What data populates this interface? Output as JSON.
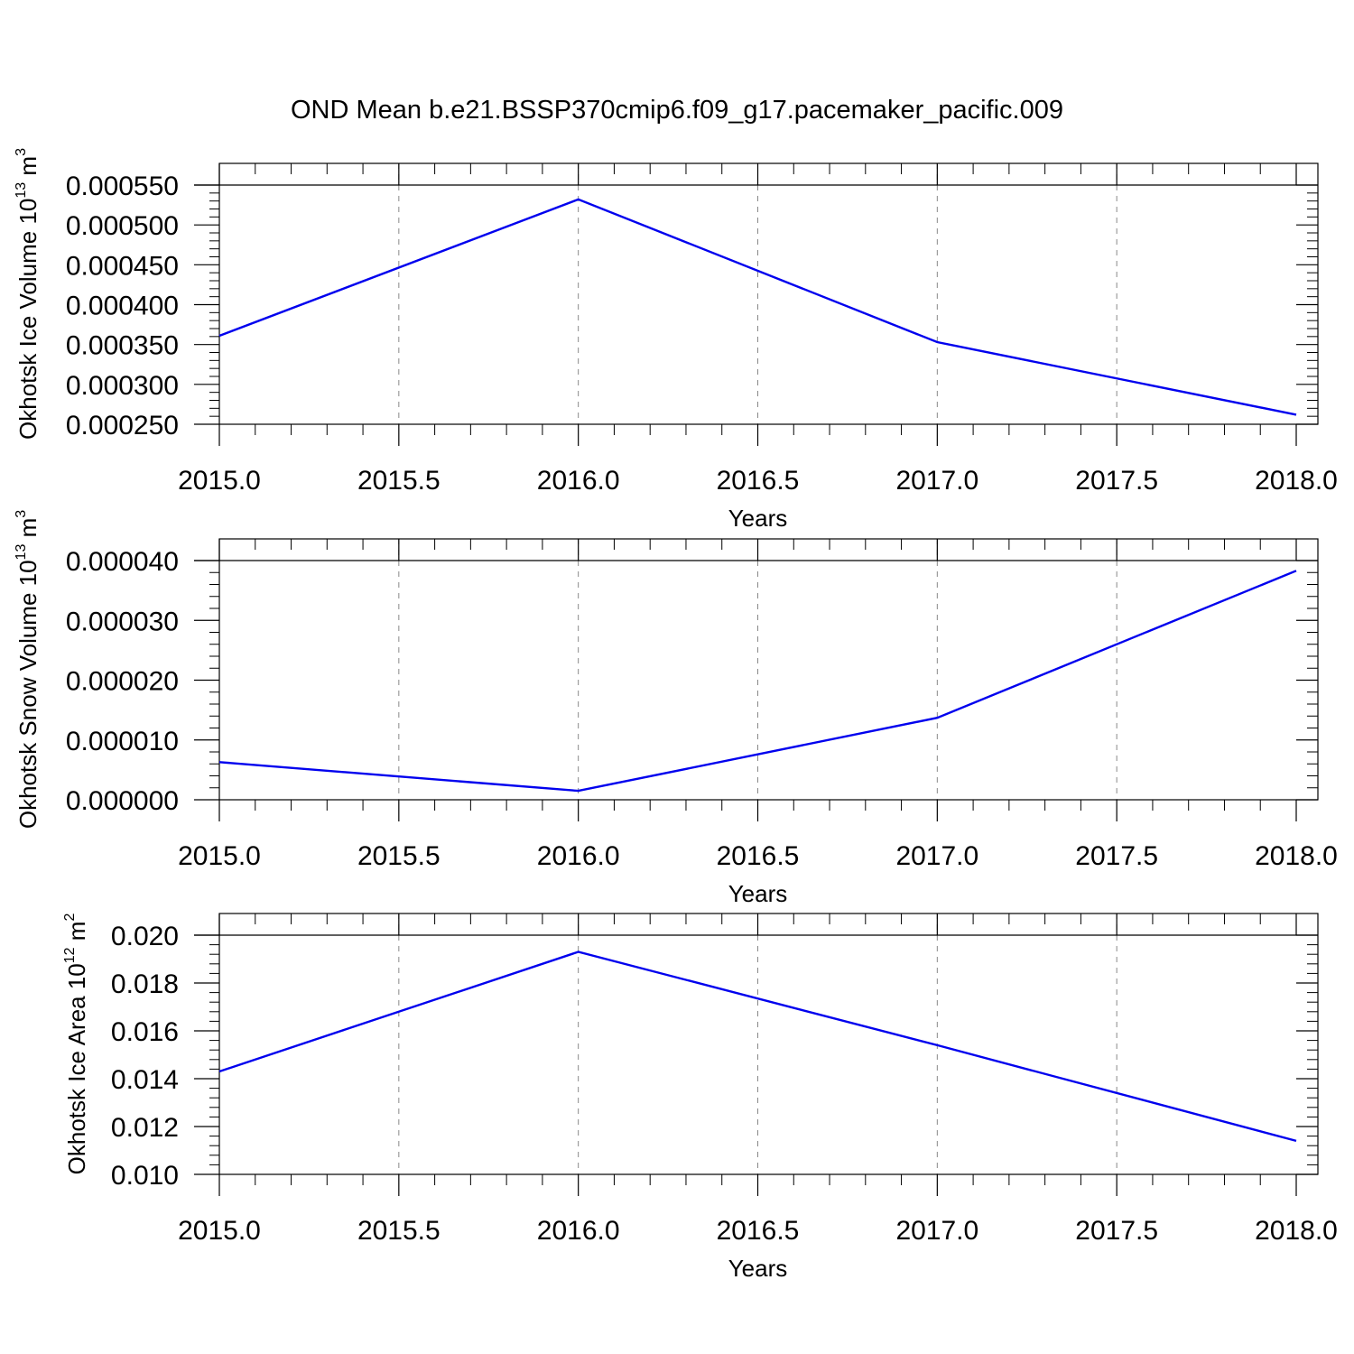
{
  "title": "OND Mean b.e21.BSSP370cmip6.f09_g17.pacemaker_pacific.009",
  "colors": {
    "series": "#0000ee",
    "grid": "#888888",
    "axis": "#000000"
  },
  "chart_data": [
    {
      "type": "line",
      "title": "",
      "xlabel": "Years",
      "ylabel": {
        "text": "Okhotsk Ice Volume 10",
        "sup": "13",
        "unit": " m",
        "unit_sup": "3"
      },
      "xlim": [
        2015.0,
        2018.0
      ],
      "ylim": [
        0.00025,
        0.00055
      ],
      "x_ticks": [
        "2015.0",
        "2015.5",
        "2016.0",
        "2016.5",
        "2017.0",
        "2017.5",
        "2018.0"
      ],
      "y_ticks": [
        "0.000250",
        "0.000300",
        "0.000350",
        "0.000400",
        "0.000450",
        "0.000500",
        "0.000550"
      ],
      "grid": "vertical-dashed",
      "x": [
        2015,
        2016,
        2017,
        2018
      ],
      "series": [
        {
          "values": [
            0.000361,
            0.000532,
            0.000353,
            0.000262
          ]
        }
      ]
    },
    {
      "type": "line",
      "title": "",
      "xlabel": "Years",
      "ylabel": {
        "text": "Okhotsk Snow Volume 10",
        "sup": "13",
        "unit": " m",
        "unit_sup": "3"
      },
      "xlim": [
        2015.0,
        2018.0
      ],
      "ylim": [
        0.0,
        4e-05
      ],
      "x_ticks": [
        "2015.0",
        "2015.5",
        "2016.0",
        "2016.5",
        "2017.0",
        "2017.5",
        "2018.0"
      ],
      "y_ticks": [
        "0.000000",
        "0.000010",
        "0.000020",
        "0.000030",
        "0.000040"
      ],
      "grid": "vertical-dashed",
      "x": [
        2015,
        2016,
        2017,
        2018
      ],
      "series": [
        {
          "values": [
            6.3e-06,
            1.5e-06,
            1.37e-05,
            3.83e-05
          ]
        }
      ]
    },
    {
      "type": "line",
      "title": "",
      "xlabel": "Years",
      "ylabel": {
        "text": "Okhotsk Ice Area 10",
        "sup": "12",
        "unit": " m",
        "unit_sup": "2"
      },
      "xlim": [
        2015.0,
        2018.0
      ],
      "ylim": [
        0.01,
        0.02
      ],
      "x_ticks": [
        "2015.0",
        "2015.5",
        "2016.0",
        "2016.5",
        "2017.0",
        "2017.5",
        "2018.0"
      ],
      "y_ticks": [
        "0.010",
        "0.012",
        "0.014",
        "0.016",
        "0.018",
        "0.020"
      ],
      "grid": "vertical-dashed",
      "x": [
        2015,
        2016,
        2017,
        2018
      ],
      "series": [
        {
          "values": [
            0.0143,
            0.0193,
            0.0154,
            0.0114
          ]
        }
      ]
    }
  ]
}
